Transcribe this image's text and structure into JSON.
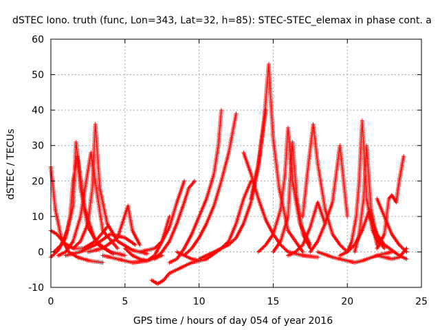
{
  "chart_data": {
    "type": "scatter",
    "title": "dSTEC Iono. truth (func, Lon=343, Lat=32, h=85): STEC-STEC_elemax in phase cont. a",
    "xlabel": "GPS time / hours of day 054 of year 2016",
    "ylabel": "dSTEC  / TECUs",
    "xlim": [
      0,
      25
    ],
    "ylim": [
      -10,
      60
    ],
    "xticks": [
      "0",
      "5",
      "10",
      "15",
      "20",
      "25"
    ],
    "yticks": [
      "-10",
      "0",
      "10",
      "20",
      "30",
      "40",
      "50",
      "60"
    ],
    "grid": true,
    "marker": "+",
    "color": "#ff0000",
    "series": [
      {
        "x": [
          0.0,
          0.3,
          0.7,
          1.2,
          1.8,
          2.6,
          3.5
        ],
        "y": [
          24,
          12,
          4,
          0,
          -1.5,
          -2.5,
          -3
        ]
      },
      {
        "x": [
          0.0,
          0.4,
          0.9,
          1.5,
          2.2,
          3.0,
          3.8
        ],
        "y": [
          6,
          5,
          2.5,
          1,
          1,
          3,
          7
        ]
      },
      {
        "x": [
          0.0,
          0.5,
          1.0,
          1.3,
          1.5,
          1.8,
          2.3,
          3.0,
          4.0,
          5.0
        ],
        "y": [
          -1.5,
          0.5,
          4,
          10,
          20,
          27,
          12,
          3,
          0,
          -1
        ]
      },
      {
        "x": [
          0.2,
          0.7,
          1.1,
          1.5,
          1.7,
          2.0,
          2.5,
          3.2,
          4.2
        ],
        "y": [
          0,
          2,
          6,
          13,
          31,
          18,
          7,
          2,
          -0.5
        ]
      },
      {
        "x": [
          0.5,
          1.0,
          1.5,
          2.0,
          2.7,
          3.5,
          4.5
        ],
        "y": [
          -1,
          0,
          3,
          10,
          28,
          6,
          1
        ]
      },
      {
        "x": [
          1.5,
          2.0,
          2.5,
          2.8,
          3.0,
          3.3,
          3.8,
          4.5,
          5.5,
          6.5
        ],
        "y": [
          1,
          3,
          8,
          18,
          36,
          18,
          8,
          3,
          0.5,
          -0.5
        ]
      },
      {
        "x": [
          1.0,
          2.0,
          3.0,
          4.0,
          5.0,
          5.7
        ],
        "y": [
          -1,
          0,
          2,
          5,
          4,
          2
        ]
      },
      {
        "x": [
          2.5,
          3.5,
          4.5,
          5.2,
          5.5,
          6.0
        ],
        "y": [
          0,
          1,
          4,
          13,
          6,
          2
        ]
      },
      {
        "x": [
          3.5,
          4.5,
          5.5,
          6.5,
          7.5
        ],
        "y": [
          -1,
          -2,
          -3,
          -2.5,
          -1
        ]
      },
      {
        "x": [
          5.0,
          5.5,
          6.0,
          6.5,
          7.0,
          7.5,
          8.0
        ],
        "y": [
          1,
          -1,
          -2,
          -2.5,
          -1,
          3,
          10
        ]
      },
      {
        "x": [
          6.8,
          7.2,
          7.6,
          8.0,
          8.5,
          9.0,
          9.5,
          10.0
        ],
        "y": [
          -8,
          -9,
          -8,
          -6,
          -5,
          -4,
          -3,
          -2.5
        ]
      },
      {
        "x": [
          6.0,
          6.5,
          7.0,
          7.5,
          8.0,
          8.5,
          9.0
        ],
        "y": [
          0,
          0.5,
          1,
          3,
          7,
          14,
          20
        ]
      },
      {
        "x": [
          7.0,
          7.5,
          8.0,
          8.5,
          9.0,
          9.3,
          9.7
        ],
        "y": [
          -2,
          0,
          3,
          8,
          14,
          18,
          20
        ]
      },
      {
        "x": [
          8.0,
          8.5,
          9.0,
          9.5,
          10.0,
          10.5,
          11.0,
          11.3,
          11.5
        ],
        "y": [
          -3,
          -2,
          1,
          5,
          10,
          15,
          22,
          30,
          40
        ]
      },
      {
        "x": [
          9.0,
          9.5,
          10.0,
          10.5,
          11.0,
          11.5,
          12.0,
          12.5
        ],
        "y": [
          -1,
          1,
          4,
          8,
          13,
          20,
          28,
          39
        ]
      },
      {
        "x": [
          8.5,
          9.0,
          9.5,
          10.0,
          10.5,
          11.0,
          11.5,
          12.0,
          12.5,
          13.0,
          13.5
        ],
        "y": [
          0,
          -1,
          -2,
          -2.5,
          -2,
          -0.5,
          1,
          3,
          8,
          15,
          20
        ]
      },
      {
        "x": [
          10.0,
          10.5,
          11.0,
          11.5,
          12.0,
          12.5,
          13.0,
          13.5,
          14.0,
          14.5
        ],
        "y": [
          -2,
          -1,
          0,
          1,
          2,
          4,
          8,
          14,
          24,
          40
        ]
      },
      {
        "x": [
          13.5,
          14.0,
          14.4,
          14.6,
          14.7,
          14.8,
          15.0,
          15.4,
          16.0,
          17.0
        ],
        "y": [
          15,
          25,
          38,
          48,
          53,
          45,
          32,
          18,
          6,
          0
        ]
      },
      {
        "x": [
          13.0,
          13.5,
          14.0,
          14.5,
          15.0,
          15.5,
          16.0,
          17.0,
          18.0
        ],
        "y": [
          28,
          22,
          15,
          9,
          5,
          2,
          0,
          -1,
          -1.5
        ]
      },
      {
        "x": [
          14.0,
          14.5,
          15.0,
          15.5,
          15.8,
          16.0,
          16.3,
          16.8,
          17.5
        ],
        "y": [
          0,
          2,
          5,
          12,
          22,
          35,
          20,
          8,
          2
        ]
      },
      {
        "x": [
          15.0,
          15.5,
          16.0,
          16.3,
          16.6,
          17.0,
          17.5
        ],
        "y": [
          0,
          3,
          10,
          31,
          15,
          5,
          1
        ]
      },
      {
        "x": [
          16.0,
          16.5,
          17.0,
          17.5,
          18.0,
          18.5
        ],
        "y": [
          -1,
          0,
          2,
          7,
          14,
          8
        ]
      },
      {
        "x": [
          17.0,
          17.3,
          17.7,
          18.0,
          18.5,
          19.0,
          19.5,
          20.0
        ],
        "y": [
          10,
          22,
          36,
          25,
          12,
          5,
          2,
          0
        ]
      },
      {
        "x": [
          17.5,
          18.0,
          18.5,
          19.0,
          19.5,
          20.0
        ],
        "y": [
          0,
          3,
          8,
          14,
          30,
          10
        ]
      },
      {
        "x": [
          18.0,
          19.0,
          20.0,
          20.5,
          21.0,
          22.0,
          23.0
        ],
        "y": [
          0,
          -1.5,
          -2.5,
          -3,
          -2.5,
          -1,
          0
        ]
      },
      {
        "x": [
          20.0,
          20.3,
          20.6,
          20.8,
          21.0,
          21.3,
          21.7,
          22.2
        ],
        "y": [
          0,
          3,
          10,
          20,
          37,
          15,
          6,
          2
        ]
      },
      {
        "x": [
          20.5,
          20.8,
          21.1,
          21.3,
          21.6,
          22.0,
          22.5
        ],
        "y": [
          0,
          5,
          15,
          30,
          12,
          4,
          1
        ]
      },
      {
        "x": [
          19.5,
          20.0,
          20.5,
          21.0,
          21.5,
          22.0
        ],
        "y": [
          -1,
          0,
          2,
          6,
          12,
          2
        ]
      },
      {
        "x": [
          22.0,
          22.5,
          22.8,
          23.0,
          23.3,
          23.5,
          23.8
        ],
        "y": [
          1,
          5,
          15,
          16,
          14,
          20,
          27
        ]
      },
      {
        "x": [
          22.0,
          22.5,
          23.0,
          23.5,
          24.0
        ],
        "y": [
          -1,
          -1.5,
          -2,
          -1.5,
          1
        ]
      },
      {
        "x": [
          21.5,
          22.0,
          22.5,
          23.0,
          23.5,
          24.0
        ],
        "y": [
          10,
          5,
          2,
          0.5,
          -1,
          -2
        ]
      },
      {
        "x": [
          22.0,
          22.5,
          23.0,
          23.5,
          24.0
        ],
        "y": [
          15,
          10,
          5,
          2,
          0
        ]
      }
    ]
  }
}
